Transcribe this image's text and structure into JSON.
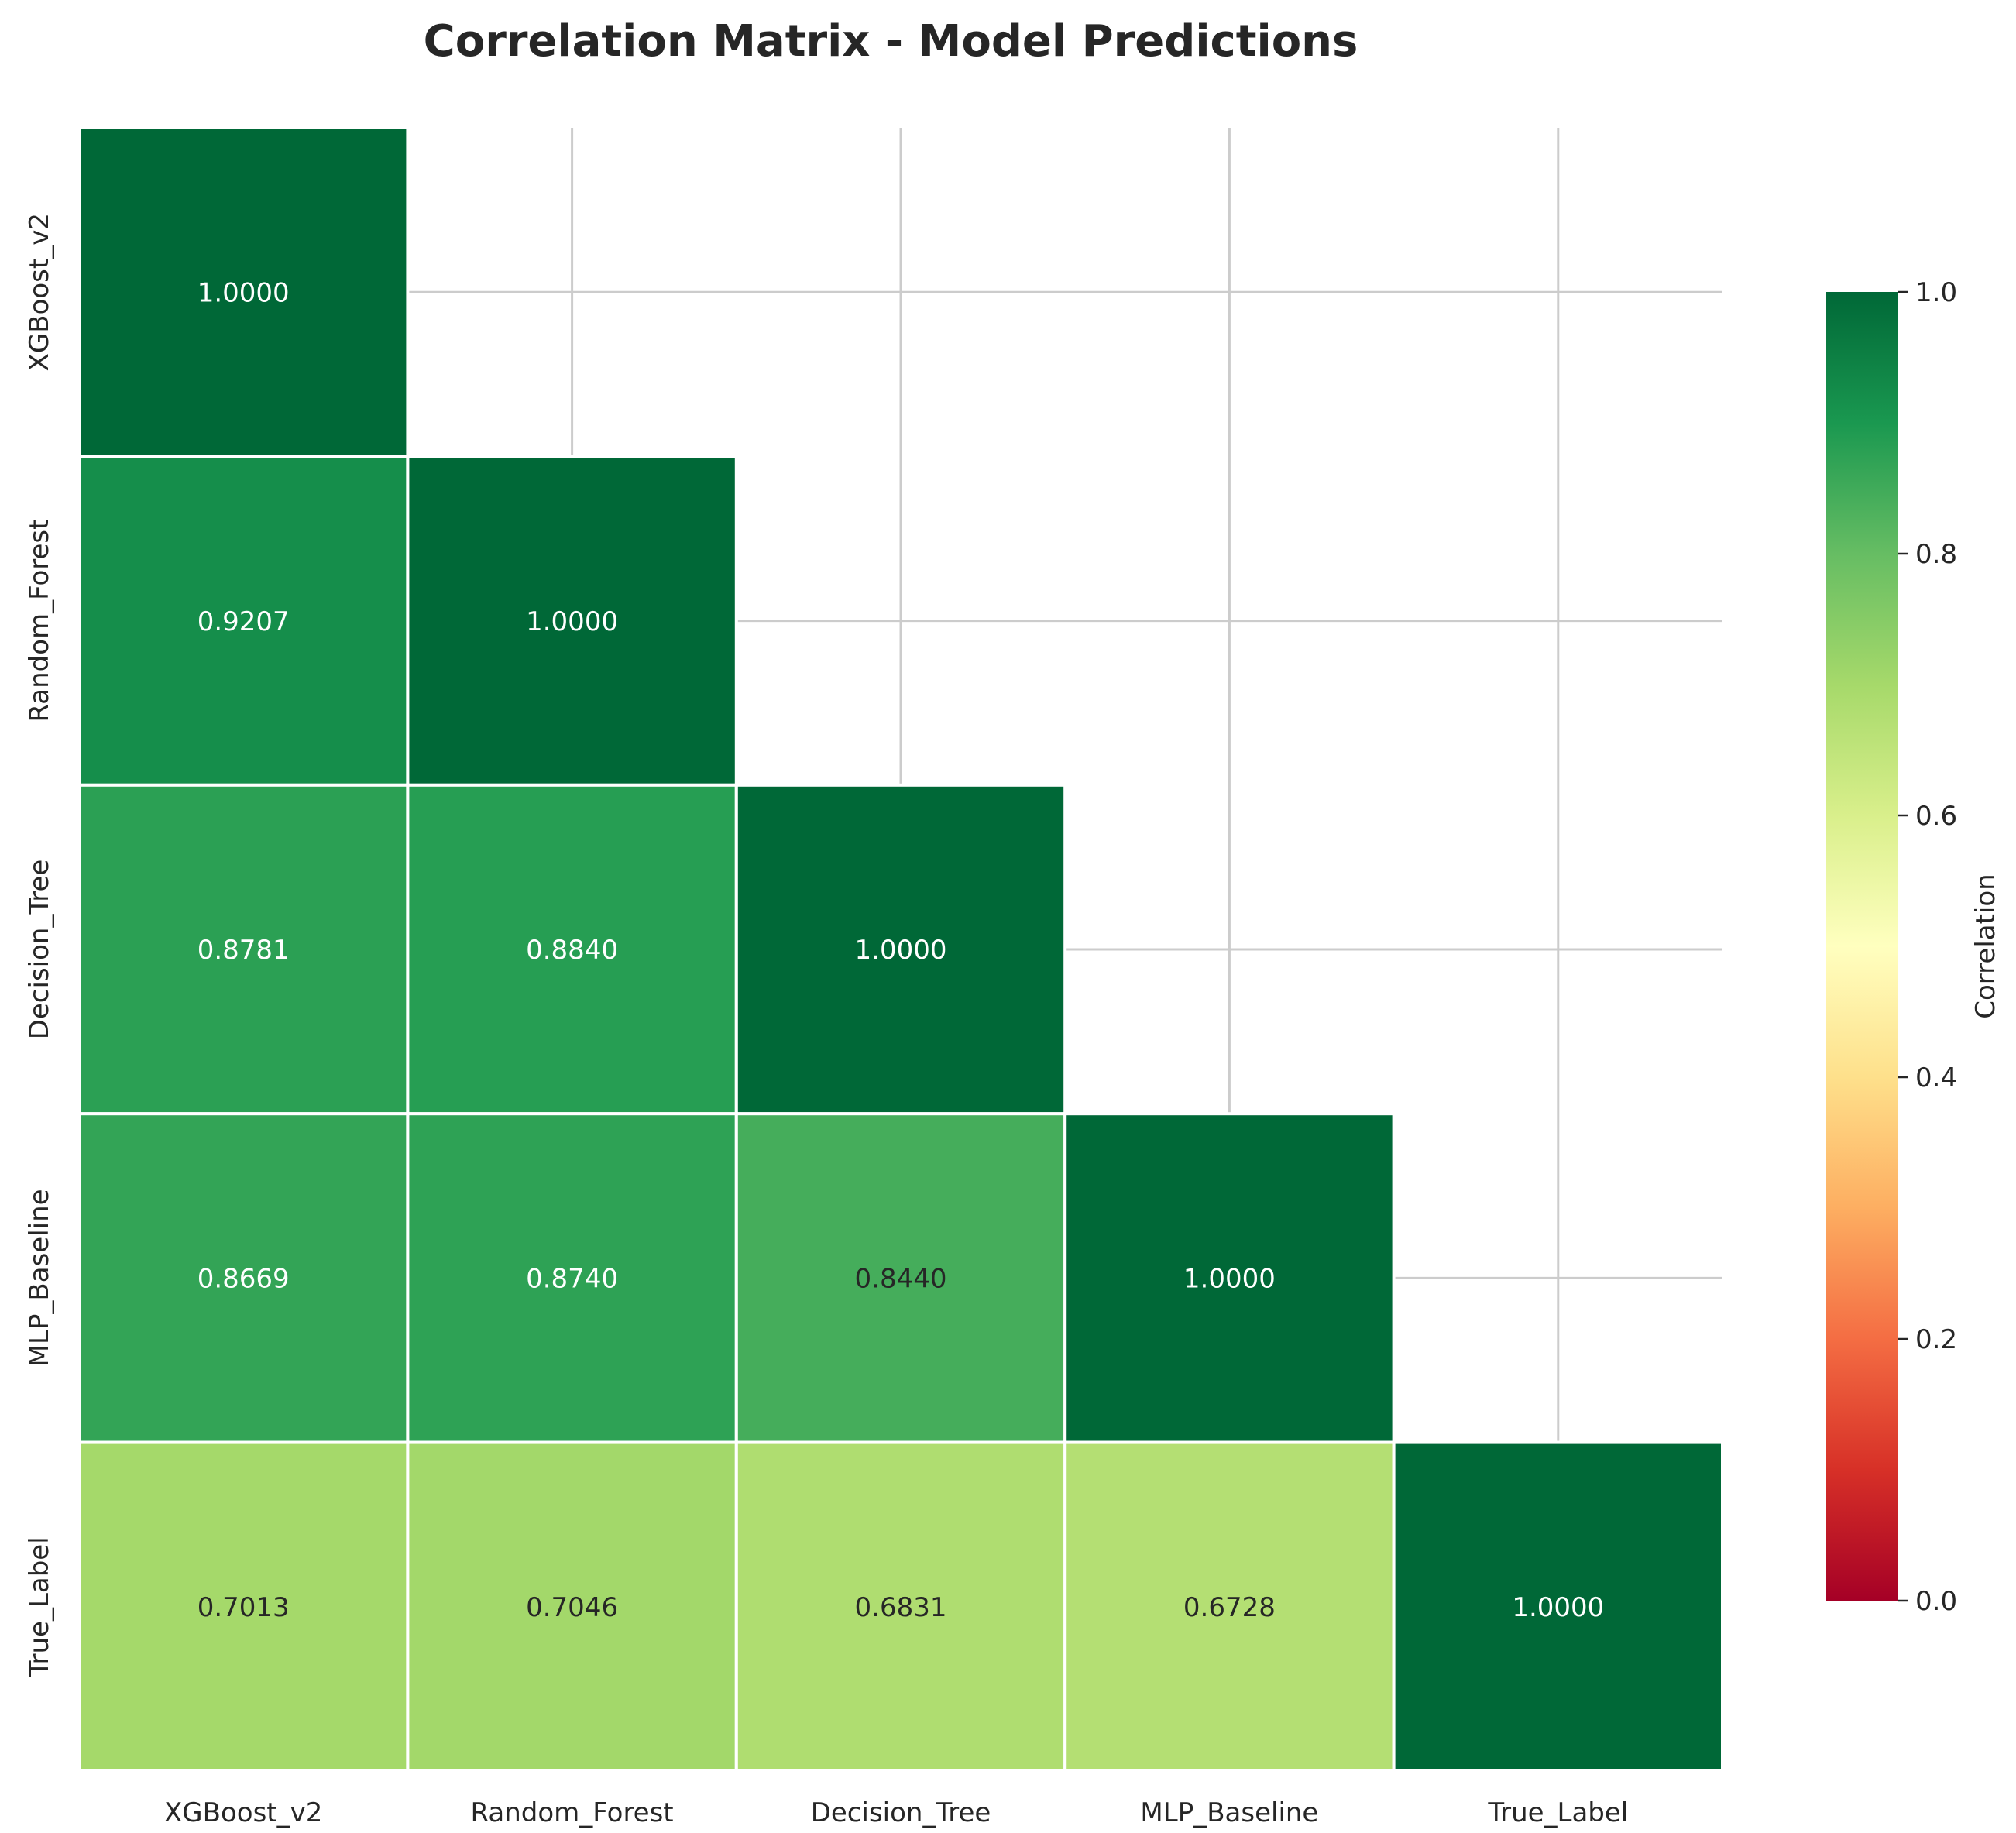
{
  "chart_data": {
    "type": "heatmap",
    "title": "Correlation Matrix - Model Predictions",
    "row_labels": [
      "XGBoost_v2",
      "Random_Forest",
      "Decision_Tree",
      "MLP_Baseline",
      "True_Label"
    ],
    "col_labels": [
      "XGBoost_v2",
      "Random_Forest",
      "Decision_Tree",
      "MLP_Baseline",
      "True_Label"
    ],
    "values": [
      [
        1.0,
        null,
        null,
        null,
        null
      ],
      [
        0.9207,
        1.0,
        null,
        null,
        null
      ],
      [
        0.8781,
        0.884,
        1.0,
        null,
        null
      ],
      [
        0.8669,
        0.874,
        0.844,
        1.0,
        null
      ],
      [
        0.7013,
        0.7046,
        0.6831,
        0.6728,
        1.0
      ]
    ],
    "value_labels": [
      [
        "1.0000",
        "",
        "",
        "",
        ""
      ],
      [
        "0.9207",
        "1.0000",
        "",
        "",
        ""
      ],
      [
        "0.8781",
        "0.8840",
        "1.0000",
        "",
        ""
      ],
      [
        "0.8669",
        "0.8740",
        "0.8440",
        "1.0000",
        ""
      ],
      [
        "0.7013",
        "0.7046",
        "0.6831",
        "0.6728",
        "1.0000"
      ]
    ],
    "mask": "upper triangle hidden",
    "colormap": "RdYlGn",
    "colormap_stops": [
      "#a50026",
      "#d73027",
      "#f46d43",
      "#fdae61",
      "#fee08b",
      "#ffffbf",
      "#d9ef8b",
      "#a6d96a",
      "#66bd63",
      "#1a9850",
      "#006837"
    ],
    "vmin": 0.0,
    "vmax": 1.0,
    "colorbar": {
      "label": "Correlation",
      "ticks": [
        "0.0",
        "0.2",
        "0.4",
        "0.6",
        "0.8",
        "1.0"
      ],
      "tick_values": [
        0.0,
        0.2,
        0.4,
        0.6,
        0.8,
        1.0
      ]
    },
    "grid": true,
    "grid_color": "#cccccc"
  }
}
